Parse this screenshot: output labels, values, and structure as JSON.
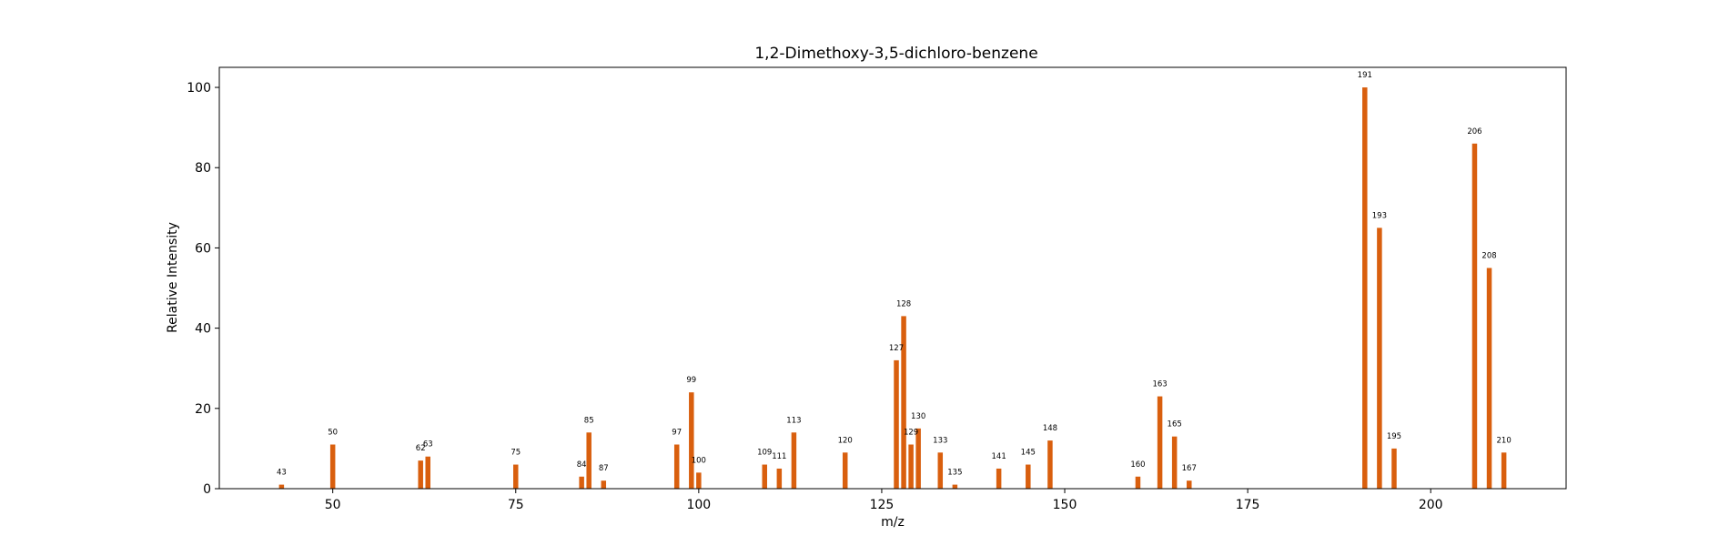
{
  "chart_data": {
    "type": "bar",
    "title": "1,2-Dimethoxy-3,5-dichloro-benzene",
    "xlabel": "m/z",
    "ylabel": "Relative Intensity",
    "xlim": [
      34.5,
      218.5
    ],
    "ylim": [
      0,
      105
    ],
    "xticks": [
      50,
      75,
      100,
      125,
      150,
      175,
      200
    ],
    "yticks": [
      0,
      20,
      40,
      60,
      80,
      100
    ],
    "bar_color": "#d95f0e",
    "grid": false,
    "points": [
      {
        "x": 43,
        "y": 1,
        "label": "43"
      },
      {
        "x": 50,
        "y": 11,
        "label": "50"
      },
      {
        "x": 62,
        "y": 7,
        "label": "62"
      },
      {
        "x": 63,
        "y": 8,
        "label": "63"
      },
      {
        "x": 75,
        "y": 6,
        "label": "75"
      },
      {
        "x": 84,
        "y": 3,
        "label": "84"
      },
      {
        "x": 85,
        "y": 14,
        "label": "85"
      },
      {
        "x": 87,
        "y": 2,
        "label": "87"
      },
      {
        "x": 97,
        "y": 11,
        "label": "97"
      },
      {
        "x": 99,
        "y": 24,
        "label": "99"
      },
      {
        "x": 100,
        "y": 4,
        "label": "100"
      },
      {
        "x": 109,
        "y": 6,
        "label": "109"
      },
      {
        "x": 111,
        "y": 5,
        "label": "111"
      },
      {
        "x": 113,
        "y": 14,
        "label": "113"
      },
      {
        "x": 120,
        "y": 9,
        "label": "120"
      },
      {
        "x": 127,
        "y": 32,
        "label": "127"
      },
      {
        "x": 128,
        "y": 43,
        "label": "128"
      },
      {
        "x": 129,
        "y": 11,
        "label": "129"
      },
      {
        "x": 130,
        "y": 15,
        "label": "130"
      },
      {
        "x": 133,
        "y": 9,
        "label": "133"
      },
      {
        "x": 135,
        "y": 1,
        "label": "135"
      },
      {
        "x": 141,
        "y": 5,
        "label": "141"
      },
      {
        "x": 145,
        "y": 6,
        "label": "145"
      },
      {
        "x": 148,
        "y": 12,
        "label": "148"
      },
      {
        "x": 160,
        "y": 3,
        "label": "160"
      },
      {
        "x": 163,
        "y": 23,
        "label": "163"
      },
      {
        "x": 165,
        "y": 13,
        "label": "165"
      },
      {
        "x": 167,
        "y": 2,
        "label": "167"
      },
      {
        "x": 191,
        "y": 100,
        "label": "191"
      },
      {
        "x": 193,
        "y": 65,
        "label": "193"
      },
      {
        "x": 195,
        "y": 10,
        "label": "195"
      },
      {
        "x": 206,
        "y": 86,
        "label": "206"
      },
      {
        "x": 208,
        "y": 55,
        "label": "208"
      },
      {
        "x": 210,
        "y": 9,
        "label": "210"
      }
    ]
  }
}
